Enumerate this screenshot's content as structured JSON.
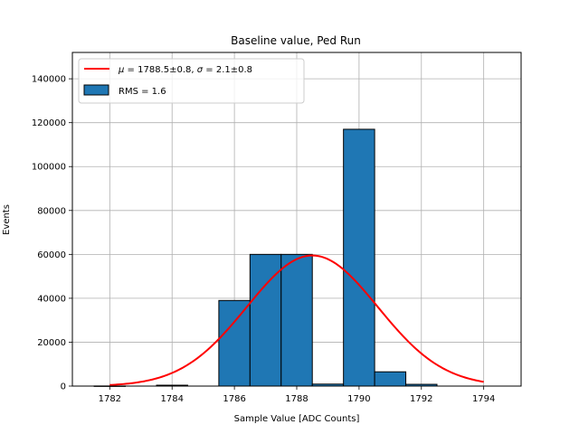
{
  "chart_data": {
    "type": "bar",
    "title": "Baseline value, Ped Run",
    "xlabel": "Sample Value [ADC Counts]",
    "ylabel": "Events",
    "xlim": [
      1780.8,
      1795.2
    ],
    "ylim": [
      0,
      152000
    ],
    "x_ticks": [
      1782,
      1784,
      1786,
      1788,
      1790,
      1792,
      1794
    ],
    "y_ticks": [
      0,
      20000,
      40000,
      60000,
      80000,
      100000,
      120000,
      140000
    ],
    "grid": true,
    "legend_position": "top-left",
    "bins": [
      {
        "left": 1781.5,
        "right": 1782.5,
        "value": 50
      },
      {
        "left": 1783.5,
        "right": 1784.5,
        "value": 400
      },
      {
        "left": 1785.5,
        "right": 1786.5,
        "value": 39000
      },
      {
        "left": 1786.5,
        "right": 1787.5,
        "value": 60000
      },
      {
        "left": 1787.5,
        "right": 1788.5,
        "value": 60000
      },
      {
        "left": 1788.5,
        "right": 1789.5,
        "value": 900
      },
      {
        "left": 1789.5,
        "right": 1790.5,
        "value": 117000
      },
      {
        "left": 1790.5,
        "right": 1791.5,
        "value": 6500
      },
      {
        "left": 1791.5,
        "right": 1792.5,
        "value": 800
      }
    ],
    "fit": {
      "type": "gaussian",
      "mu": 1788.5,
      "sigma": 2.1,
      "amplitude": 59500,
      "x_range": [
        1782,
        1794
      ],
      "color": "#ff0000"
    },
    "bar_color": "#1f77b4",
    "series": [
      {
        "name": "$\\mu = 1788.5\\pm0.8$, $\\sigma = 2.1\\pm0.8$",
        "kind": "line",
        "color": "#ff0000"
      },
      {
        "name": "RMS = 1.6",
        "kind": "bar",
        "color": "#1f77b4"
      }
    ]
  },
  "legend": {
    "fit_mu_symbol": "μ",
    "fit_mu_text": " = 1788.5±0.8, ",
    "fit_sigma_symbol": "σ",
    "fit_sigma_text": " = 2.1±0.8",
    "hist_label": "RMS = 1.6"
  }
}
